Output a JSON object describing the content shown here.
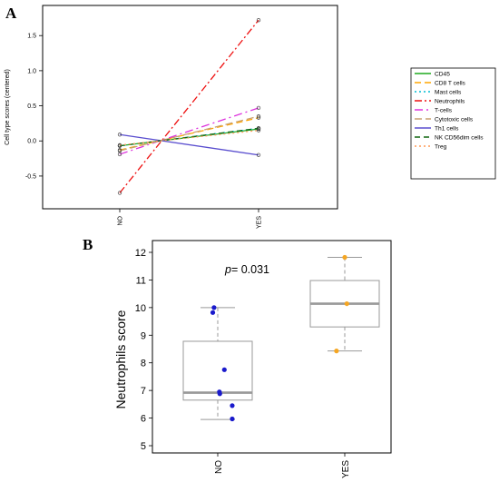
{
  "figure": {
    "panel_a_label": "A",
    "panel_b_label": "B"
  },
  "chart_data": [
    {
      "type": "line",
      "panel": "A",
      "title": "",
      "xlabel": "",
      "ylabel": "Cell type scores (centered)",
      "categories": [
        "NO",
        "YES"
      ],
      "ylim": [
        -0.85,
        1.8
      ],
      "yticks": [
        -0.5,
        0.0,
        0.5,
        1.0,
        1.5
      ],
      "ytick_labels": [
        "-0.5",
        "0.0",
        "0.5",
        "1.0",
        "1.5"
      ],
      "grid": false,
      "legend_position": "right",
      "series": [
        {
          "name": "CD45",
          "values": [
            -0.07,
            0.17
          ],
          "color": "#1faa1f",
          "dash": "solid"
        },
        {
          "name": "CD8 T cells",
          "values": [
            -0.13,
            0.33
          ],
          "color": "#ffa500",
          "dash": "7,4"
        },
        {
          "name": "Mast cells",
          "values": [
            -0.07,
            0.18
          ],
          "color": "#00bcd4",
          "dash": "2,3"
        },
        {
          "name": "Neutrophils",
          "values": [
            -0.74,
            1.72
          ],
          "color": "#ee1111",
          "dash": "8,3,2,3"
        },
        {
          "name": "T-cells",
          "values": [
            -0.19,
            0.47
          ],
          "color": "#dd33dd",
          "dash": "9,4,2,4"
        },
        {
          "name": "Cytotoxic cells",
          "values": [
            -0.14,
            0.35
          ],
          "color": "#c8a070",
          "dash": "8,4"
        },
        {
          "name": "Th1 cells",
          "values": [
            0.09,
            -0.2
          ],
          "color": "#5a4ecf",
          "dash": "solid"
        },
        {
          "name": "NK CD56dim cells",
          "values": [
            -0.07,
            0.18
          ],
          "color": "#116611",
          "dash": "6,4"
        },
        {
          "name": "Treg",
          "values": [
            -0.06,
            0.15
          ],
          "color": "#ff9955",
          "dash": "2,3"
        }
      ]
    },
    {
      "type": "box",
      "panel": "B",
      "title": "",
      "xlabel": "",
      "ylabel": "Neutrophils score",
      "categories": [
        "NO",
        "YES"
      ],
      "ylim": [
        4.8,
        12.2
      ],
      "yticks": [
        5,
        6,
        7,
        8,
        9,
        10,
        11,
        12
      ],
      "annotation": {
        "italic": "p",
        "text": "= 0.031"
      },
      "boxes": [
        {
          "category": "NO",
          "min": 5.95,
          "q1": 6.65,
          "median": 6.92,
          "q3": 8.78,
          "max": 10.0,
          "points": [
            {
              "offset": -0.12,
              "value": 9.82
            },
            {
              "offset": -0.09,
              "value": 10.0
            },
            {
              "offset": 0.16,
              "value": 7.75
            },
            {
              "offset": 0.04,
              "value": 6.95
            },
            {
              "offset": 0.05,
              "value": 6.88
            },
            {
              "offset": 0.35,
              "value": 6.45
            },
            {
              "offset": 0.35,
              "value": 5.97
            }
          ],
          "point_color": "#1a1acc"
        },
        {
          "category": "YES",
          "min": 8.43,
          "q1": 9.3,
          "median": 10.14,
          "q3": 10.98,
          "max": 11.82,
          "points": [
            {
              "offset": 0.0,
              "value": 11.82
            },
            {
              "offset": 0.05,
              "value": 10.14
            },
            {
              "offset": -0.2,
              "value": 8.43
            }
          ],
          "point_color": "#f5a623"
        }
      ]
    }
  ]
}
